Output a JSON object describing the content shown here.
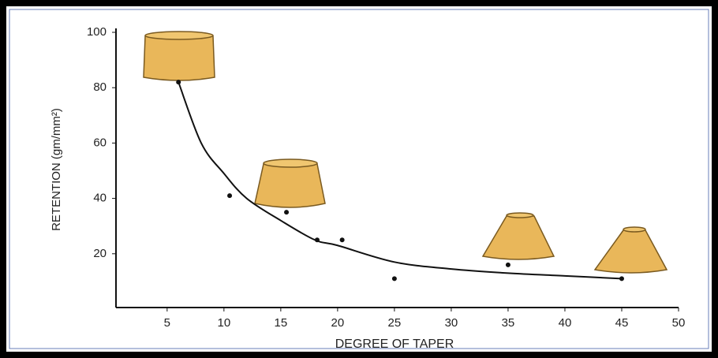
{
  "chart_data": {
    "type": "scatter",
    "xlabel": "DEGREE OF TAPER",
    "ylabel": "RETENTION (gm/mm²)",
    "points": {
      "x": [
        6,
        10.5,
        15.5,
        18.2,
        20.4,
        25,
        35,
        45
      ],
      "y": [
        82,
        41,
        35,
        25,
        25,
        11,
        16,
        11
      ],
      "color": "#111111"
    },
    "curve": {
      "x": [
        6,
        8,
        10,
        12,
        15,
        18,
        20,
        25,
        30,
        35,
        40,
        45
      ],
      "y": [
        82,
        60,
        49,
        40,
        32,
        25,
        23,
        17,
        14.5,
        13,
        12,
        11
      ],
      "color": "#111111"
    },
    "xlim": [
      0.5,
      50
    ],
    "ylim": [
      0,
      100
    ],
    "xticks": [
      5,
      10,
      15,
      20,
      25,
      30,
      35,
      40,
      45,
      50
    ],
    "yticks": [
      20,
      40,
      60,
      80,
      100
    ],
    "grid": false
  }
}
